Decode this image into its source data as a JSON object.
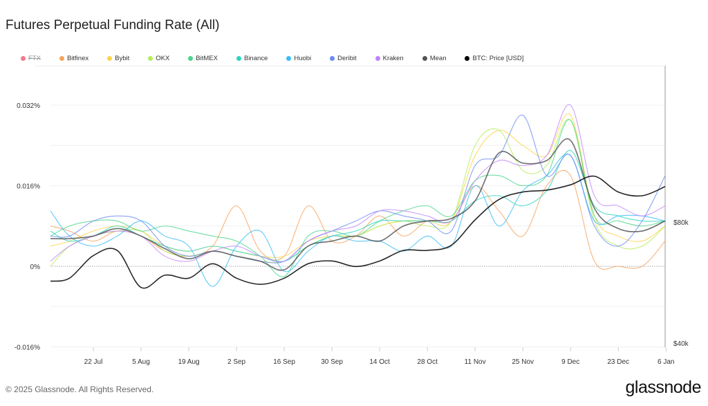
{
  "title": "Futures Perpetual Funding Rate (All)",
  "footer": "© 2025 Glassnode. All Rights Reserved.",
  "logo": "glassnode",
  "legend": [
    {
      "name": "FTX",
      "color": "#f47a8a",
      "hidden": true
    },
    {
      "name": "Bitfinex",
      "color": "#f7a35c"
    },
    {
      "name": "Bybit",
      "color": "#fcd34d"
    },
    {
      "name": "OKX",
      "color": "#b5ee5a"
    },
    {
      "name": "BitMEX",
      "color": "#4ad68a"
    },
    {
      "name": "Binance",
      "color": "#2dd4bf"
    },
    {
      "name": "Huobi",
      "color": "#38bdf8"
    },
    {
      "name": "Deribit",
      "color": "#6b8cf0"
    },
    {
      "name": "Kraken",
      "color": "#c084fc"
    },
    {
      "name": "Mean",
      "color": "#555555"
    },
    {
      "name": "BTC: Price [USD]",
      "color": "#000000"
    }
  ],
  "chart_data": {
    "type": "line",
    "title": "Futures Perpetual Funding Rate (All)",
    "x": [
      "9 Jul",
      "15 Jul",
      "22 Jul",
      "29 Jul",
      "5 Aug",
      "12 Aug",
      "19 Aug",
      "26 Aug",
      "2 Sep",
      "9 Sep",
      "16 Sep",
      "23 Sep",
      "30 Sep",
      "7 Oct",
      "14 Oct",
      "21 Oct",
      "28 Oct",
      "4 Nov",
      "11 Nov",
      "18 Nov",
      "25 Nov",
      "2 Dec",
      "9 Dec",
      "16 Dec",
      "23 Dec",
      "30 Dec",
      "6 Jan"
    ],
    "x_ticks": [
      "22 Jul",
      "5 Aug",
      "19 Aug",
      "2 Sep",
      "16 Sep",
      "30 Sep",
      "14 Oct",
      "28 Oct",
      "11 Nov",
      "25 Nov",
      "9 Dec",
      "23 Dec",
      "6 Jan"
    ],
    "y_ticks": [
      "0.032%",
      "0.016%",
      "0%",
      "-0.016%"
    ],
    "y_tick_values": [
      0.032,
      0.016,
      0,
      -0.016
    ],
    "ylim": [
      -0.016,
      0.04
    ],
    "y2_ticks": [
      "$80k",
      "$40k"
    ],
    "y2_tick_values": [
      80000,
      40000
    ],
    "y2_scale": "log",
    "grid": true,
    "legend_position": "top",
    "series": [
      {
        "name": "Bitfinex",
        "axis": "left",
        "values": [
          0.008,
          0.007,
          0.005,
          0.007,
          0.006,
          0.003,
          0.002,
          0.004,
          0.012,
          0.003,
          0.002,
          0.012,
          0.005,
          0.006,
          0.01,
          0.006,
          0.009,
          0.009,
          0.016,
          0.011,
          0.006,
          0.016,
          0.018,
          0.001,
          0,
          0,
          0.005
        ]
      },
      {
        "name": "Bybit",
        "axis": "left",
        "values": [
          0.004,
          0.005,
          0.007,
          0.008,
          0.007,
          0.004,
          0.003,
          0.004,
          0.003,
          0.002,
          0.002,
          0.005,
          0.006,
          0.006,
          0.008,
          0.009,
          0.009,
          0.009,
          0.022,
          0.027,
          0.024,
          0.022,
          0.03,
          0.01,
          0.006,
          0.005,
          0.008
        ]
      },
      {
        "name": "OKX",
        "axis": "left",
        "values": [
          0.0,
          0.004,
          0.006,
          0.007,
          0.007,
          0.003,
          0.002,
          0.003,
          0.002,
          0.001,
          0.001,
          0.004,
          0.006,
          0.006,
          0.008,
          0.009,
          0.008,
          0.009,
          0.024,
          0.027,
          0.019,
          0.02,
          0.029,
          0.009,
          0.004,
          0.004,
          0.008
        ]
      },
      {
        "name": "BitMEX",
        "axis": "left",
        "values": [
          0.006,
          0.008,
          0.009,
          0.009,
          0.007,
          0.008,
          0.007,
          0.006,
          0.005,
          0.002,
          -0.002,
          0.006,
          0.007,
          0.006,
          0.009,
          0.011,
          0.012,
          0.01,
          0.017,
          0.018,
          0.016,
          0.018,
          0.029,
          0.01,
          0.009,
          0.008,
          0.009
        ]
      },
      {
        "name": "Binance",
        "axis": "left",
        "values": [
          0.007,
          0.005,
          0.006,
          0.008,
          0.006,
          0.004,
          0.003,
          0.004,
          0.003,
          0.002,
          0.001,
          0.004,
          0.006,
          0.007,
          0.009,
          0.009,
          0.009,
          0.009,
          0.013,
          0.014,
          0.012,
          0.015,
          0.023,
          0.012,
          0.01,
          0.009,
          0.009
        ]
      },
      {
        "name": "Huobi",
        "axis": "left",
        "values": [
          0.011,
          0.006,
          0.004,
          0.006,
          0.009,
          0.006,
          0.004,
          -0.004,
          0.004,
          0.007,
          -0.001,
          0.003,
          0.006,
          0.005,
          0.005,
          0.003,
          0.006,
          0.004,
          0.016,
          0.008,
          0.015,
          0.018,
          0.022,
          0.009,
          0.01,
          0.01,
          0.009
        ]
      },
      {
        "name": "Deribit",
        "axis": "left",
        "values": [
          0.006,
          0.006,
          0.009,
          0.01,
          0.009,
          0.004,
          0.002,
          0.003,
          0.002,
          0.001,
          0.001,
          0.005,
          0.007,
          0.009,
          0.011,
          0.01,
          0.009,
          0.007,
          0.02,
          0.022,
          0.03,
          0.018,
          0.022,
          0.008,
          0.004,
          0.009,
          0.018
        ]
      },
      {
        "name": "Kraken",
        "axis": "left",
        "values": [
          0.001,
          0.004,
          0.006,
          0.007,
          0.006,
          0.002,
          0.001,
          0.003,
          0.004,
          0.002,
          0.001,
          0.005,
          0.007,
          0.008,
          0.011,
          0.011,
          0.01,
          0.009,
          0.017,
          0.021,
          0.02,
          0.022,
          0.032,
          0.014,
          0.012,
          0.01,
          0.012
        ]
      },
      {
        "name": "Mean",
        "axis": "left",
        "values": [
          0.0055,
          0.0055,
          0.006,
          0.0075,
          0.006,
          0.0035,
          0.0015,
          0.003,
          0.002,
          0.001,
          -0.0007,
          0.004,
          0.005,
          0.006,
          0.005,
          0.008,
          0.009,
          0.0095,
          0.013,
          0.0225,
          0.0205,
          0.021,
          0.025,
          0.0115,
          0.0075,
          0.007,
          0.009
        ]
      },
      {
        "name": "BTC: Price [USD]",
        "axis": "right",
        "values": [
          57000,
          58000,
          66000,
          68000,
          55000,
          59000,
          58000,
          63000,
          58000,
          56000,
          58000,
          63000,
          64000,
          62000,
          64000,
          68000,
          68000,
          70000,
          81000,
          91000,
          95000,
          96000,
          99000,
          104000,
          95000,
          93000,
          98000
        ]
      }
    ]
  }
}
